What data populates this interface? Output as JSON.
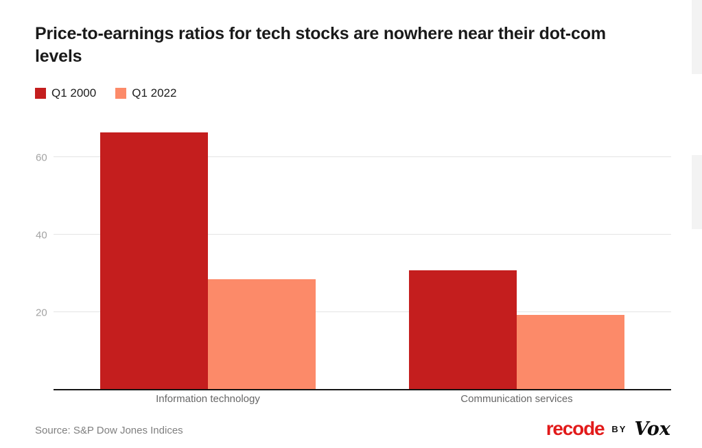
{
  "title": "Price-to-earnings ratios for tech stocks are nowhere near their dot-com levels",
  "chart_data": {
    "type": "bar",
    "title": "Price-to-earnings ratios for tech stocks are nowhere near their dot-com levels",
    "categories": [
      "Information technology",
      "Communication services"
    ],
    "series": [
      {
        "name": "Q1 2000",
        "color": "#c41e1e",
        "values": [
          66.4,
          30.9
        ]
      },
      {
        "name": "Q1 2022",
        "color": "#fc8a69",
        "values": [
          28.6,
          19.3
        ]
      }
    ],
    "xlabel": "",
    "ylabel": "",
    "ylim": [
      0,
      70
    ],
    "yticks": [
      20,
      40,
      60
    ],
    "grid": true,
    "legend_position": "top-left"
  },
  "footer": {
    "source": "Source: S&P Dow Jones Indices",
    "brand": {
      "recode": "recode",
      "recode_color": "#e21a1a",
      "by": "BY",
      "vox": "Vox"
    }
  }
}
